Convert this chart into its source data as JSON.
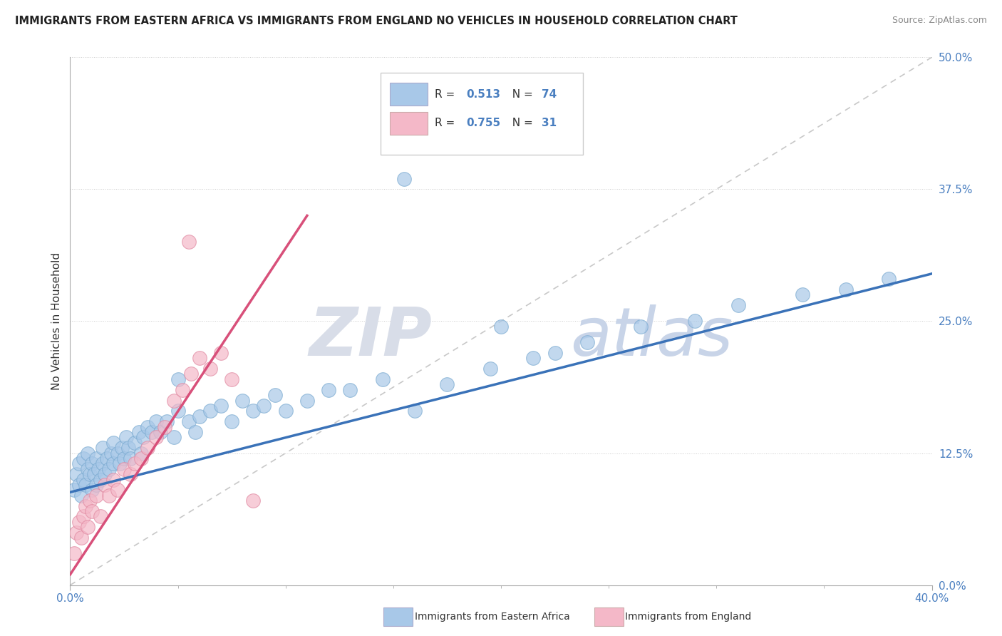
{
  "title": "IMMIGRANTS FROM EASTERN AFRICA VS IMMIGRANTS FROM ENGLAND NO VEHICLES IN HOUSEHOLD CORRELATION CHART",
  "source": "Source: ZipAtlas.com",
  "ylabel": "No Vehicles in Household",
  "xlim": [
    0.0,
    0.4
  ],
  "ylim": [
    0.0,
    0.5
  ],
  "r_blue": "0.513",
  "n_blue": "74",
  "r_pink": "0.755",
  "n_pink": "31",
  "blue_color": "#a8c8e8",
  "pink_color": "#f4b8c8",
  "blue_line_color": "#3a72b8",
  "pink_line_color": "#d8507a",
  "diag_color": "#c8c8c8",
  "legend_color_blue": "#5a9ad8",
  "legend_color_pink": "#f07898",
  "label_color": "#4a7fc0",
  "text_color": "#333333",
  "background_color": "#ffffff",
  "blue_scatter_x": [
    0.002,
    0.003,
    0.004,
    0.004,
    0.005,
    0.006,
    0.006,
    0.007,
    0.008,
    0.008,
    0.009,
    0.01,
    0.01,
    0.011,
    0.012,
    0.012,
    0.013,
    0.014,
    0.015,
    0.015,
    0.016,
    0.017,
    0.018,
    0.019,
    0.02,
    0.02,
    0.022,
    0.023,
    0.024,
    0.025,
    0.026,
    0.027,
    0.028,
    0.03,
    0.032,
    0.033,
    0.034,
    0.036,
    0.038,
    0.04,
    0.042,
    0.045,
    0.048,
    0.05,
    0.055,
    0.058,
    0.06,
    0.065,
    0.07,
    0.075,
    0.08,
    0.085,
    0.09,
    0.095,
    0.1,
    0.11,
    0.12,
    0.13,
    0.145,
    0.16,
    0.175,
    0.195,
    0.215,
    0.24,
    0.265,
    0.29,
    0.31,
    0.34,
    0.36,
    0.38,
    0.155,
    0.2,
    0.225,
    0.05
  ],
  "blue_scatter_y": [
    0.09,
    0.105,
    0.095,
    0.115,
    0.085,
    0.1,
    0.12,
    0.095,
    0.11,
    0.125,
    0.105,
    0.09,
    0.115,
    0.105,
    0.095,
    0.12,
    0.11,
    0.1,
    0.115,
    0.13,
    0.105,
    0.12,
    0.11,
    0.125,
    0.115,
    0.135,
    0.125,
    0.115,
    0.13,
    0.12,
    0.14,
    0.13,
    0.12,
    0.135,
    0.145,
    0.125,
    0.14,
    0.15,
    0.145,
    0.155,
    0.145,
    0.155,
    0.14,
    0.165,
    0.155,
    0.145,
    0.16,
    0.165,
    0.17,
    0.155,
    0.175,
    0.165,
    0.17,
    0.18,
    0.165,
    0.175,
    0.185,
    0.185,
    0.195,
    0.165,
    0.19,
    0.205,
    0.215,
    0.23,
    0.245,
    0.25,
    0.265,
    0.275,
    0.28,
    0.29,
    0.385,
    0.245,
    0.22,
    0.195
  ],
  "pink_scatter_x": [
    0.002,
    0.003,
    0.004,
    0.005,
    0.006,
    0.007,
    0.008,
    0.009,
    0.01,
    0.012,
    0.014,
    0.016,
    0.018,
    0.02,
    0.022,
    0.025,
    0.028,
    0.03,
    0.033,
    0.036,
    0.04,
    0.044,
    0.048,
    0.052,
    0.056,
    0.06,
    0.065,
    0.07,
    0.075,
    0.085,
    0.055
  ],
  "pink_scatter_y": [
    0.03,
    0.05,
    0.06,
    0.045,
    0.065,
    0.075,
    0.055,
    0.08,
    0.07,
    0.085,
    0.065,
    0.095,
    0.085,
    0.1,
    0.09,
    0.11,
    0.105,
    0.115,
    0.12,
    0.13,
    0.14,
    0.15,
    0.175,
    0.185,
    0.2,
    0.215,
    0.205,
    0.22,
    0.195,
    0.08,
    0.325
  ],
  "blue_trend_x0": 0.0,
  "blue_trend_y0": 0.088,
  "blue_trend_x1": 0.4,
  "blue_trend_y1": 0.295,
  "pink_trend_x0": 0.0,
  "pink_trend_y0": 0.01,
  "pink_trend_x1": 0.11,
  "pink_trend_y1": 0.35
}
